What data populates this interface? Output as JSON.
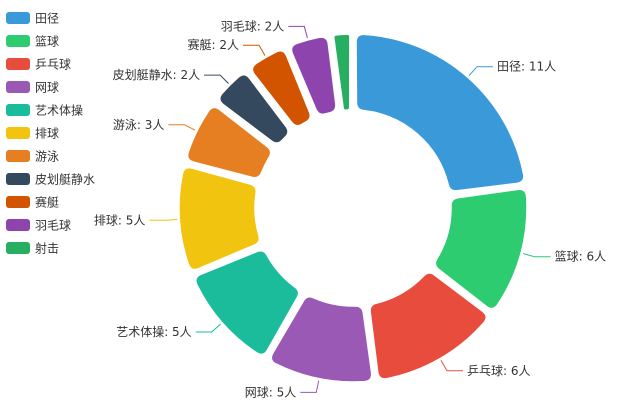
{
  "chart_data": {
    "type": "pie",
    "variant": "donut",
    "title": "",
    "legend_position": "top-left",
    "label_suffix": "人",
    "categories": [
      "田径",
      "篮球",
      "乒乓球",
      "网球",
      "艺术体操",
      "排球",
      "游泳",
      "皮划艇静水",
      "赛艇",
      "羽毛球",
      "射击"
    ],
    "values": [
      11,
      6,
      6,
      5,
      5,
      5,
      3,
      2,
      2,
      2,
      1
    ],
    "shown_labels": [
      "田径: 11人",
      "篮球: 6人",
      "乒乓球: 6人",
      "网球: 5人",
      "艺术体操: 5人",
      "排球: 5人",
      "游泳: 3人",
      "皮划艇静水: 2人",
      "赛艇: 2人",
      "羽毛球: 2人",
      ""
    ],
    "colors": [
      "#3a9ad9",
      "#2ecc71",
      "#e74c3c",
      "#9b59b6",
      "#1abc9c",
      "#f1c40f",
      "#e67e22",
      "#34495e",
      "#d35400",
      "#8e44ad",
      "#27ae60"
    ]
  }
}
